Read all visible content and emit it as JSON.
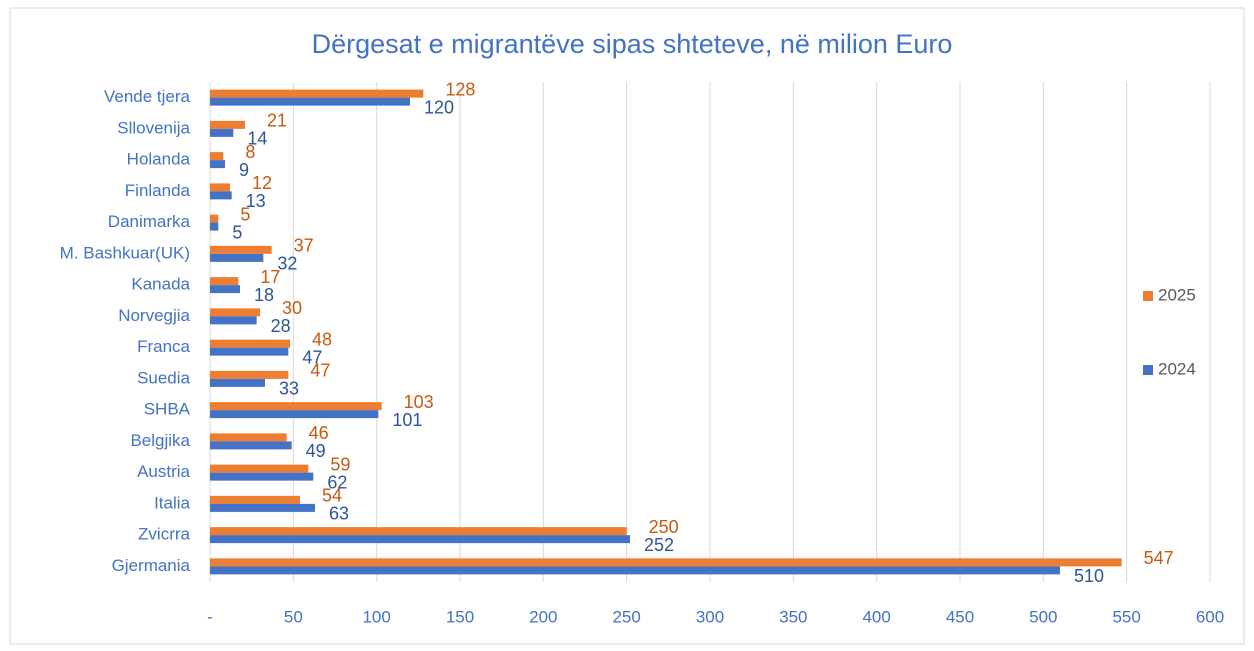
{
  "chart_data": {
    "type": "hbar",
    "title": "Dërgesat e migrantëve sipas shteteve, në milion Euro",
    "categories": [
      "Vende tjera",
      "Sllovenija",
      "Holanda",
      "Finlanda",
      "Danimarka",
      "M. Bashkuar(UK)",
      "Kanada",
      "Norvegjia",
      "Franca",
      "Suedia",
      "SHBA",
      "Belgjika",
      "Austria",
      "Italia",
      "Zvicrra",
      "Gjermania"
    ],
    "series": [
      {
        "name": "2025",
        "color": "#ed7d31",
        "values": [
          128,
          21,
          8,
          12,
          5,
          37,
          17,
          30,
          48,
          47,
          103,
          46,
          59,
          54,
          250,
          547
        ]
      },
      {
        "name": "2024",
        "color": "#4472c4",
        "values": [
          120,
          14,
          9,
          13,
          5,
          32,
          18,
          28,
          47,
          33,
          101,
          49,
          62,
          63,
          252,
          510
        ]
      }
    ],
    "xlim": [
      0,
      600
    ],
    "xticks": [
      {
        "value": 0,
        "label": "-"
      },
      50,
      100,
      150,
      200,
      250,
      300,
      350,
      400,
      450,
      500,
      550,
      600
    ],
    "grid": true,
    "legend": "right"
  }
}
